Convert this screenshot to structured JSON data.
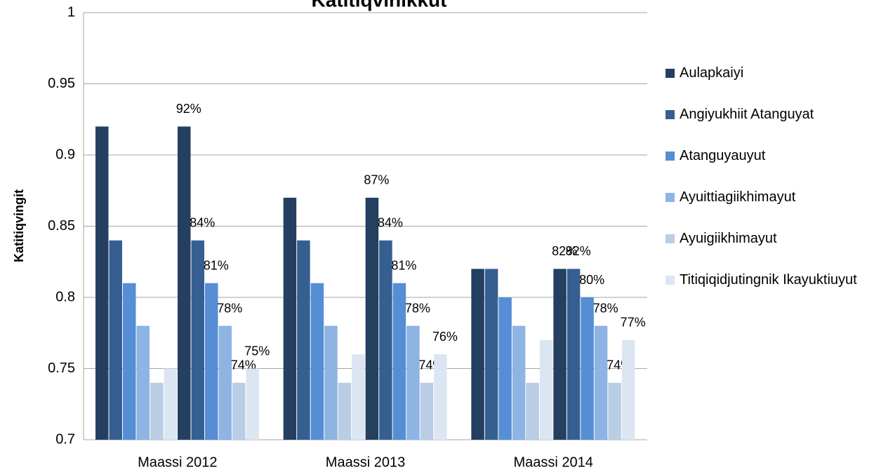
{
  "chart_data": {
    "type": "bar",
    "title": "Katitiqvinikkut",
    "y_label": "Katitiqvingit",
    "categories": [
      "Maassi 2012",
      "Maassi 2013",
      "Maassi 2014"
    ],
    "series": [
      {
        "name": "Aulapkaiyi",
        "color": "#243f60",
        "values": [
          0.92,
          0.87,
          0.82
        ],
        "value_labels": [
          "92%",
          "87%",
          "82%"
        ]
      },
      {
        "name": "Angiyukhiit Atanguyat",
        "color": "#365f91",
        "values": [
          0.84,
          0.84,
          0.82
        ],
        "value_labels": [
          "84%",
          "84%",
          "82%"
        ]
      },
      {
        "name": "Atanguyauyut",
        "color": "#558ed5",
        "values": [
          0.81,
          0.81,
          0.8
        ],
        "value_labels": [
          "81%",
          "81%",
          "80%"
        ]
      },
      {
        "name": "Ayuittiagiikhimayut",
        "color": "#8eb4e3",
        "values": [
          0.78,
          0.78,
          0.78
        ],
        "value_labels": [
          "78%",
          "78%",
          "78%"
        ]
      },
      {
        "name": "Ayuigiikhimayut",
        "color": "#b9cde5",
        "values": [
          0.74,
          0.74,
          0.74
        ],
        "value_labels": [
          "74%",
          "74%",
          "74%"
        ]
      },
      {
        "name": "Titiqiqidjutingnik Ikayuktiuyut",
        "color": "#dce6f2",
        "values": [
          0.75,
          0.76,
          0.77
        ],
        "value_labels": [
          "75%",
          "76%",
          "77%"
        ]
      }
    ],
    "ylim": [
      0.7,
      1
    ],
    "yticks": [
      0.7,
      0.75,
      0.8,
      0.85,
      0.9,
      0.95,
      1
    ],
    "grid": true,
    "legend": "right"
  }
}
